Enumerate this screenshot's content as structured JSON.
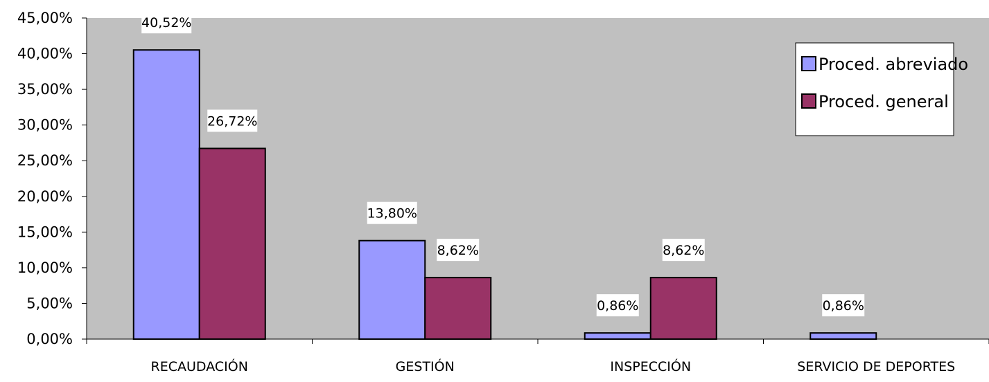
{
  "chart_data": {
    "type": "bar",
    "categories": [
      "RECAUDACIÓN",
      "GESTIÓN",
      "INSPECCIÓN",
      "SERVICIO DE DEPORTES"
    ],
    "series": [
      {
        "name": "Proced. abreviado",
        "color": "#9999ff",
        "values": [
          40.52,
          13.8,
          0.86,
          0.86
        ],
        "labels": [
          "40,52%",
          "13,80%",
          "0,86%",
          "0,86%"
        ]
      },
      {
        "name": "Proced. general",
        "color": "#993366",
        "values": [
          26.72,
          8.62,
          8.62,
          0
        ],
        "labels": [
          "26,72%",
          "8,62%",
          "8,62%",
          ""
        ]
      }
    ],
    "ylim": [
      0,
      45
    ],
    "yticks": [
      0,
      5,
      10,
      15,
      20,
      25,
      30,
      35,
      40,
      45
    ],
    "ytick_labels": [
      "0,00%",
      "5,00%",
      "10,00%",
      "15,00%",
      "20,00%",
      "25,00%",
      "30,00%",
      "35,00%",
      "40,00%",
      "45,00%"
    ],
    "plot_background": "#c0c0c0",
    "grid": false,
    "legend_position": "top-right",
    "title": "",
    "xlabel": "",
    "ylabel": ""
  }
}
